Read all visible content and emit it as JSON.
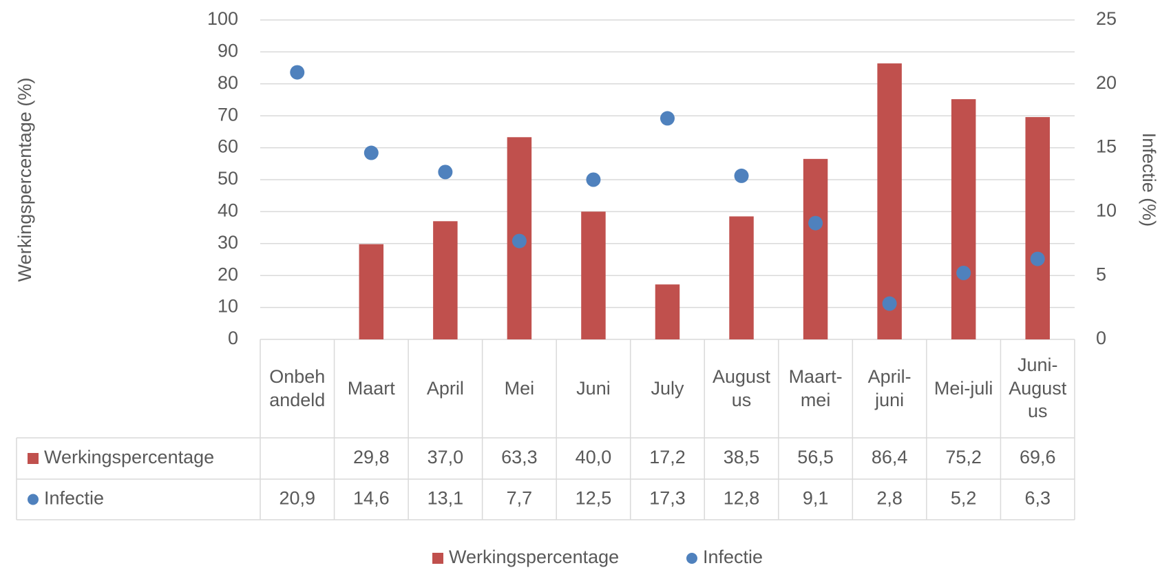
{
  "chart_data": {
    "type": "bar",
    "categories": [
      "Onbehandeld",
      "Maart",
      "April",
      "Mei",
      "Juni",
      "July",
      "Augustus",
      "Maart-mei",
      "April-juni",
      "Mei-juli",
      "Juni-Augustus"
    ],
    "series": [
      {
        "name": "Werkingspercentage",
        "color": "#c0504d",
        "type": "bar",
        "values": [
          null,
          29.8,
          37.0,
          63.3,
          40.0,
          17.2,
          38.5,
          56.5,
          86.4,
          75.2,
          69.6
        ],
        "value_labels": [
          null,
          "29,8",
          "37,0",
          "63,3",
          "40,0",
          "17,2",
          "38,5",
          "56,5",
          "86,4",
          "75,2",
          "69,6"
        ]
      },
      {
        "name": "Infectie",
        "color": "#4f81bd",
        "type": "scatter",
        "axis": "y2",
        "values": [
          20.9,
          14.6,
          13.1,
          7.7,
          12.5,
          17.3,
          12.8,
          9.1,
          2.8,
          5.2,
          6.3
        ],
        "value_labels": [
          "20,9",
          "14,6",
          "13,1",
          "7,7",
          "12,5",
          "17,3",
          "12,8",
          "9,1",
          "2,8",
          "5,2",
          "6,3"
        ]
      }
    ],
    "ylabel": "Werkingspercentage (%)",
    "y2label": "Infectie (%)",
    "ylim": [
      0,
      100
    ],
    "yticks": [
      0,
      10,
      20,
      30,
      40,
      50,
      60,
      70,
      80,
      90,
      100
    ],
    "y2lim": [
      0,
      25
    ],
    "y2ticks": [
      0,
      5,
      10,
      15,
      20,
      25
    ],
    "grid": true,
    "legend": "bottom"
  }
}
